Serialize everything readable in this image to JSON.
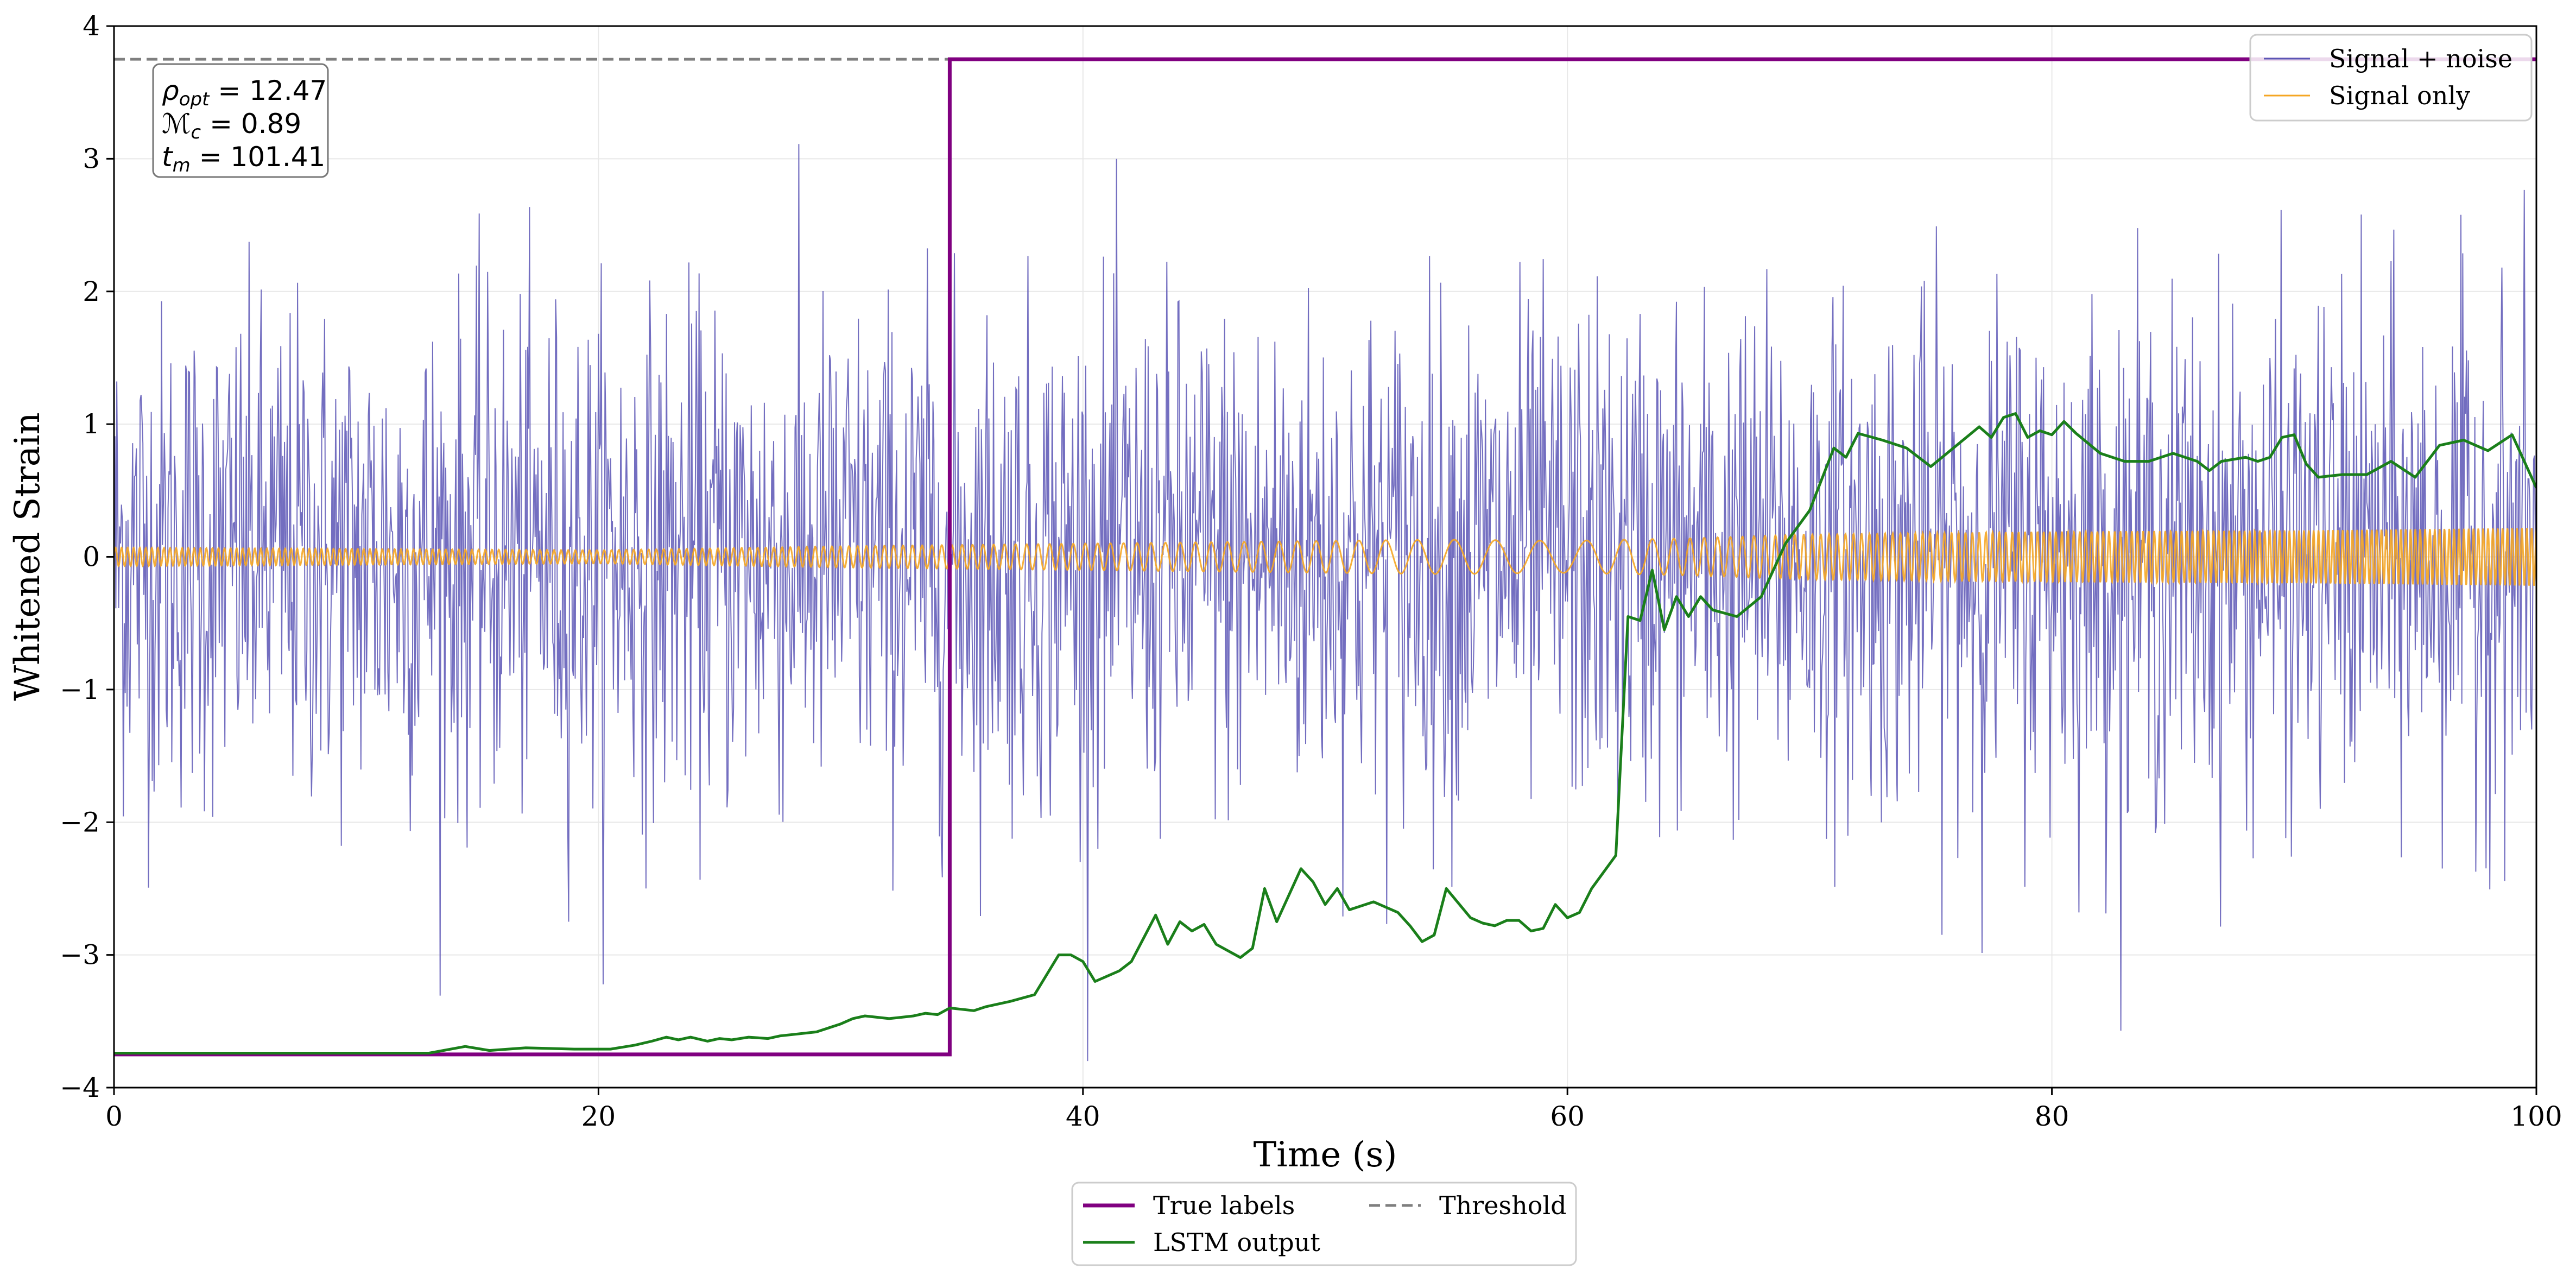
{
  "chart_data": {
    "type": "line",
    "title": "",
    "xlabel": "Time (s)",
    "ylabel": "Whitened Strain",
    "xlim": [
      0,
      100
    ],
    "ylim": [
      -4,
      4
    ],
    "xticks": [
      0,
      20,
      40,
      60,
      80,
      100
    ],
    "yticks": [
      -4,
      -3,
      -2,
      -1,
      0,
      1,
      2,
      3,
      4
    ],
    "xtick_labels": [
      "0",
      "20",
      "40",
      "60",
      "80",
      "100"
    ],
    "ytick_labels": [
      "−4",
      "−3",
      "−2",
      "−1",
      "0",
      "1",
      "2",
      "3",
      "4"
    ],
    "grid": true,
    "annotation": {
      "rho_symbol": "ρ",
      "rho_sub": "opt",
      "rho_value": " = 12.47",
      "mc_symbol": "ℳ",
      "mc_sub": "c",
      "mc_value": " = 0.89",
      "tm_symbol": "t",
      "tm_sub": "m",
      "tm_value": " = 101.41"
    },
    "legend_upper": {
      "position": "top-right",
      "entries": [
        {
          "name": "Signal + noise",
          "color": "#5a55b5"
        },
        {
          "name": "Signal only",
          "color": "#f5a623"
        }
      ]
    },
    "legend_lower": {
      "position": "below-plot",
      "entries": [
        {
          "name": "True labels",
          "color": "#800080",
          "style": "solid"
        },
        {
          "name": "LSTM output",
          "color": "#1a7f1a",
          "style": "solid"
        },
        {
          "name": "Threshold",
          "color": "#7f7f7f",
          "style": "dashed"
        }
      ]
    },
    "series": [
      {
        "name": "Signal + noise",
        "color": "#5a55b5",
        "description": "whitened noisy strain, amplitude approx ±2.5 with spikes to ±3.8, 0–100 s"
      },
      {
        "name": "Signal only",
        "color": "#f5a623",
        "x": [
          0,
          10,
          20,
          30,
          40,
          50,
          55,
          60,
          65,
          70,
          80,
          90,
          100
        ],
        "amplitude": [
          0.07,
          0.06,
          0.05,
          0.08,
          0.1,
          0.12,
          0.13,
          0.12,
          0.14,
          0.17,
          0.19,
          0.2,
          0.22
        ],
        "period_s": [
          0.25,
          0.25,
          0.3,
          0.35,
          0.5,
          0.8,
          1.6,
          2.0,
          0.6,
          0.35,
          0.25,
          0.2,
          0.2
        ]
      },
      {
        "name": "True labels",
        "color": "#800080",
        "x": [
          0,
          34.5,
          34.5,
          100
        ],
        "y": [
          -3.75,
          -3.75,
          3.75,
          3.75
        ]
      },
      {
        "name": "Threshold",
        "color": "#7f7f7f",
        "x": [
          0,
          100
        ],
        "y": [
          3.75,
          3.75
        ]
      },
      {
        "name": "LSTM output",
        "color": "#1a7f1a",
        "x": [
          0,
          5,
          10,
          13,
          14.5,
          15.5,
          17,
          19,
          20.5,
          21.5,
          22.2,
          22.8,
          23.3,
          23.8,
          24.5,
          25,
          25.5,
          26.2,
          27,
          27.5,
          28,
          29,
          30,
          30.5,
          31,
          32,
          32.5,
          33,
          33.5,
          34,
          34.5,
          35,
          35.5,
          36,
          37,
          38,
          39,
          39.5,
          40,
          40.5,
          41.5,
          42,
          43,
          43.5,
          44,
          44.5,
          45,
          45.5,
          46.5,
          47,
          47.5,
          48,
          49,
          49.5,
          50,
          50.5,
          51,
          52,
          53,
          53.5,
          54,
          54.5,
          55,
          56,
          56.5,
          57,
          57.5,
          58,
          58.5,
          59,
          59.5,
          60,
          60.5,
          61,
          62,
          62.5,
          63,
          63.5,
          64,
          64.5,
          65,
          65.5,
          66,
          67,
          68,
          69,
          70,
          71,
          71.5,
          72,
          73,
          74,
          75,
          76,
          77,
          77.5,
          78,
          78.5,
          79,
          79.5,
          80,
          80.5,
          81,
          82,
          83,
          84,
          85,
          86,
          86.5,
          87,
          88,
          88.5,
          89,
          89.5,
          90,
          90.5,
          91,
          92,
          93,
          94,
          95,
          96,
          97,
          98,
          99,
          100
        ],
        "y": [
          -3.74,
          -3.74,
          -3.74,
          -3.74,
          -3.69,
          -3.72,
          -3.7,
          -3.71,
          -3.71,
          -3.68,
          -3.65,
          -3.62,
          -3.64,
          -3.62,
          -3.65,
          -3.63,
          -3.64,
          -3.62,
          -3.63,
          -3.61,
          -3.6,
          -3.58,
          -3.52,
          -3.48,
          -3.46,
          -3.48,
          -3.47,
          -3.46,
          -3.44,
          -3.45,
          -3.4,
          -3.41,
          -3.42,
          -3.39,
          -3.35,
          -3.3,
          -3.0,
          -3.0,
          -3.05,
          -3.2,
          -3.12,
          -3.05,
          -2.7,
          -2.92,
          -2.75,
          -2.82,
          -2.77,
          -2.92,
          -3.02,
          -2.95,
          -2.5,
          -2.75,
          -2.35,
          -2.45,
          -2.62,
          -2.5,
          -2.66,
          -2.6,
          -2.68,
          -2.78,
          -2.9,
          -2.85,
          -2.5,
          -2.72,
          -2.76,
          -2.78,
          -2.74,
          -2.74,
          -2.82,
          -2.8,
          -2.62,
          -2.72,
          -2.68,
          -2.5,
          -2.25,
          -0.45,
          -0.48,
          -0.1,
          -0.55,
          -0.3,
          -0.45,
          -0.3,
          -0.4,
          -0.45,
          -0.3,
          0.1,
          0.35,
          0.82,
          0.75,
          0.93,
          0.88,
          0.82,
          0.68,
          0.83,
          0.98,
          0.9,
          1.05,
          1.08,
          0.9,
          0.95,
          0.92,
          1.02,
          0.93,
          0.78,
          0.72,
          0.72,
          0.78,
          0.72,
          0.65,
          0.72,
          0.75,
          0.72,
          0.75,
          0.9,
          0.92,
          0.7,
          0.6,
          0.62,
          0.62,
          0.72,
          0.6,
          0.84,
          0.88,
          0.8,
          0.92,
          0.52
        ]
      }
    ]
  }
}
